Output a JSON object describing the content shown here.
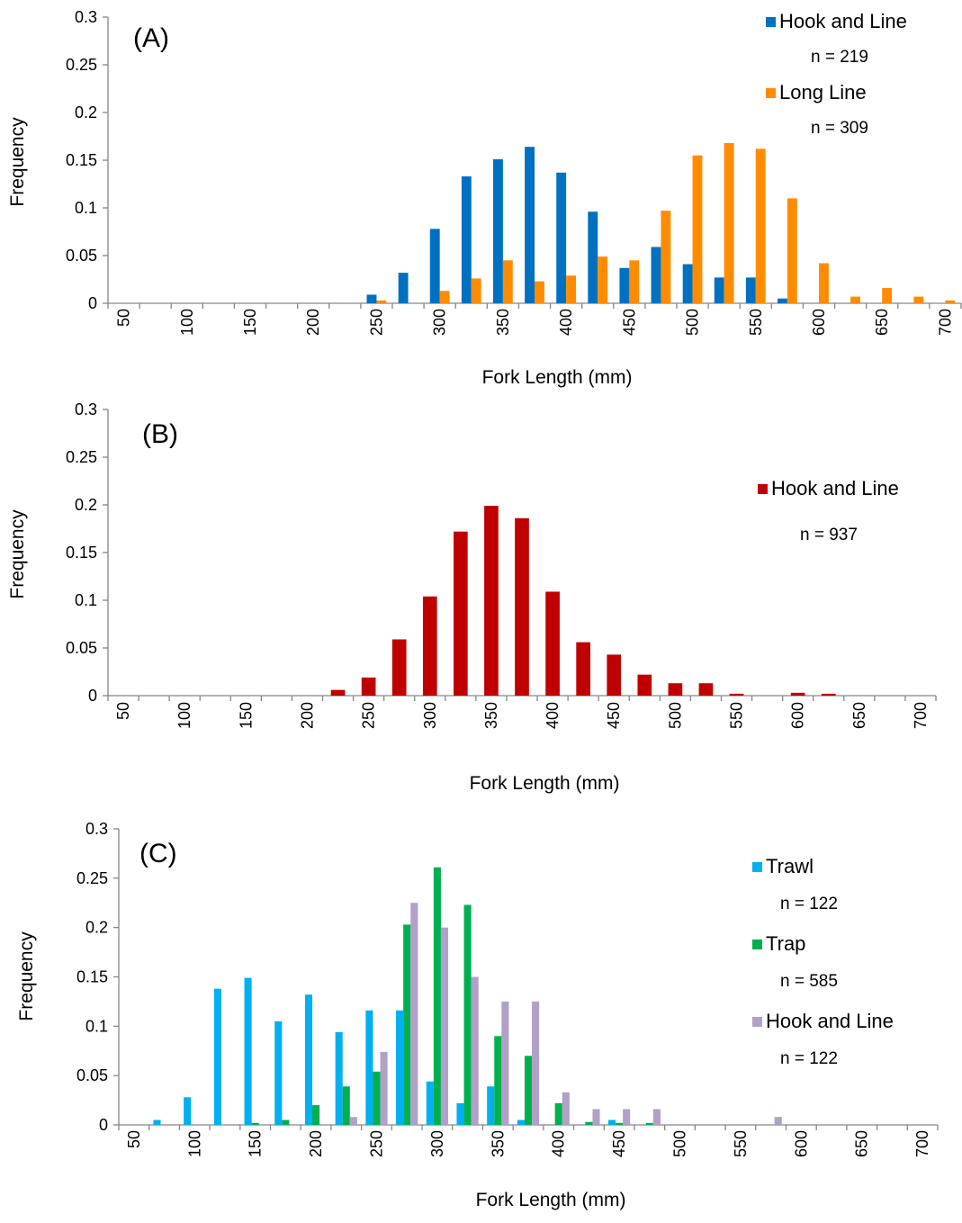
{
  "chart_data": [
    {
      "type": "bar",
      "panel_label": "(A)",
      "xlabel": "Fork Length (mm)",
      "ylabel": "Frequency",
      "ylim": [
        0,
        0.3
      ],
      "yticks": [
        "0",
        "0.05",
        "0.1",
        "0.15",
        "0.2",
        "0.25",
        "0.3"
      ],
      "categories": [
        "50",
        "75",
        "100",
        "125",
        "150",
        "175",
        "200",
        "225",
        "250",
        "275",
        "300",
        "325",
        "350",
        "375",
        "400",
        "425",
        "450",
        "475",
        "500",
        "525",
        "550",
        "575",
        "600",
        "625",
        "650",
        "675",
        "700"
      ],
      "category_labels": [
        "50",
        "",
        "100",
        "",
        "150",
        "",
        "200",
        "",
        "250",
        "",
        "300",
        "",
        "350",
        "",
        "400",
        "",
        "450",
        "",
        "500",
        "",
        "550",
        "",
        "600",
        "",
        "650",
        "",
        "700"
      ],
      "series": [
        {
          "name": "Hook and Line",
          "n": "n = 219",
          "color": "#0070c0",
          "values": [
            0,
            0,
            0,
            0,
            0,
            0,
            0,
            0,
            0.009,
            0.032,
            0.078,
            0.133,
            0.151,
            0.164,
            0.137,
            0.096,
            0.037,
            0.059,
            0.041,
            0.027,
            0.027,
            0.005,
            0,
            0,
            0,
            0,
            0
          ]
        },
        {
          "name": "Long Line",
          "n": "n = 309",
          "color": "#ff8c00",
          "values": [
            0,
            0,
            0,
            0,
            0,
            0,
            0,
            0,
            0.003,
            0,
            0.013,
            0.026,
            0.045,
            0.023,
            0.029,
            0.049,
            0.045,
            0.097,
            0.155,
            0.168,
            0.162,
            0.11,
            0.042,
            0.007,
            0.016,
            0.007,
            0.003
          ]
        }
      ],
      "legend_position": "top-right",
      "grid": false
    },
    {
      "type": "bar",
      "panel_label": "(B)",
      "xlabel": "Fork Length (mm)",
      "ylabel": "Frequency",
      "ylim": [
        0,
        0.3
      ],
      "yticks": [
        "0",
        "0.05",
        "0.1",
        "0.15",
        "0.2",
        "0.25",
        "0.3"
      ],
      "categories": [
        "50",
        "75",
        "100",
        "125",
        "150",
        "175",
        "200",
        "225",
        "250",
        "275",
        "300",
        "325",
        "350",
        "375",
        "400",
        "425",
        "450",
        "475",
        "500",
        "525",
        "550",
        "575",
        "600",
        "625",
        "650",
        "675",
        "700"
      ],
      "category_labels": [
        "50",
        "",
        "100",
        "",
        "150",
        "",
        "200",
        "",
        "250",
        "",
        "300",
        "",
        "350",
        "",
        "400",
        "",
        "450",
        "",
        "500",
        "",
        "550",
        "",
        "600",
        "",
        "650",
        "",
        "700"
      ],
      "series": [
        {
          "name": "Hook and Line",
          "n": "n = 937",
          "color": "#c00000",
          "values": [
            0,
            0,
            0,
            0,
            0,
            0,
            0,
            0.006,
            0.019,
            0.059,
            0.104,
            0.172,
            0.199,
            0.186,
            0.109,
            0.056,
            0.043,
            0.022,
            0.013,
            0.013,
            0.002,
            0,
            0.003,
            0.002,
            0,
            0,
            0
          ]
        }
      ],
      "legend_position": "top-right",
      "grid": false
    },
    {
      "type": "bar",
      "panel_label": "(C)",
      "xlabel": "Fork Length (mm)",
      "ylabel": "Frequency",
      "ylim": [
        0,
        0.3
      ],
      "yticks": [
        "0",
        "0.05",
        "0.1",
        "0.15",
        "0.2",
        "0.25",
        "0.3"
      ],
      "categories": [
        "50",
        "75",
        "100",
        "125",
        "150",
        "175",
        "200",
        "225",
        "250",
        "275",
        "300",
        "325",
        "350",
        "375",
        "400",
        "425",
        "450",
        "475",
        "500",
        "525",
        "550",
        "575",
        "600",
        "625",
        "650",
        "675",
        "700"
      ],
      "category_labels": [
        "50",
        "",
        "100",
        "",
        "150",
        "",
        "200",
        "",
        "250",
        "",
        "300",
        "",
        "350",
        "",
        "400",
        "",
        "450",
        "",
        "500",
        "",
        "550",
        "",
        "600",
        "",
        "650",
        "",
        "700"
      ],
      "series": [
        {
          "name": "Trawl",
          "n": "n = 122",
          "color": "#00b0f0",
          "values": [
            0,
            0.005,
            0.028,
            0.138,
            0.149,
            0.105,
            0.132,
            0.094,
            0.116,
            0.116,
            0.044,
            0.022,
            0.039,
            0.005,
            0,
            0,
            0.005,
            0,
            0,
            0,
            0,
            0,
            0,
            0,
            0,
            0,
            0
          ]
        },
        {
          "name": "Trap",
          "n": "n = 585",
          "color": "#00b050",
          "values": [
            0,
            0,
            0,
            0,
            0.002,
            0.005,
            0.02,
            0.039,
            0.054,
            0.203,
            0.261,
            0.223,
            0.09,
            0.07,
            0.022,
            0.003,
            0.002,
            0.002,
            0,
            0,
            0,
            0,
            0,
            0,
            0,
            0,
            0
          ]
        },
        {
          "name": "Hook and Line",
          "n": "n = 122",
          "color": "#b1a0c7",
          "values": [
            0,
            0,
            0,
            0,
            0,
            0,
            0,
            0.008,
            0.074,
            0.225,
            0.2,
            0.15,
            0.125,
            0.125,
            0.033,
            0.016,
            0.016,
            0.016,
            0,
            0,
            0,
            0.008,
            0,
            0,
            0,
            0,
            0
          ]
        }
      ],
      "legend_position": "top-right",
      "grid": false
    }
  ]
}
